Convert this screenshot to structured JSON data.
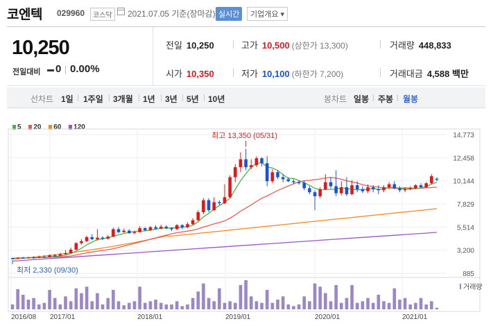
{
  "header": {
    "name": "코엔텍",
    "code": "029960",
    "market": "코스닥",
    "as_of": "2021.07.05 기준(장마감)",
    "realtime_label": "실시간",
    "info_label": "기업개요 ▾"
  },
  "quote": {
    "price": "10,250",
    "change_label": "전일대비",
    "change_value": "0",
    "change_pct": "0.00%",
    "prev_close_label": "전일",
    "prev_close": "10,250",
    "high_label": "고가",
    "high": "10,500",
    "upper_limit": "(상한가 13,300)",
    "volume_label": "거래량",
    "volume": "448,833",
    "open_label": "시가",
    "open": "10,350",
    "low_label": "저가",
    "low": "10,100",
    "lower_limit": "(하한가 7,200)",
    "amount_label": "거래대금",
    "amount": "4,588 백만"
  },
  "period_bar": {
    "section_label": "선차트",
    "periods": [
      "1일",
      "1주일",
      "3개월",
      "1년",
      "3년",
      "5년",
      "10년"
    ],
    "candle_label": "봉차트",
    "candles": [
      "일봉",
      "주봉",
      "월봉"
    ],
    "selected_candle": "월봉"
  },
  "colors": {
    "up": "#e0181c",
    "down": "#1653d8",
    "ma5": "#4fb33b",
    "ma20": "#e85a5a",
    "ma60": "#f08a24",
    "ma120": "#9a55c9",
    "volume": "#9b86c6"
  },
  "chart_data": {
    "type": "candlestick",
    "legend": [
      {
        "name": "5",
        "color": "#4fb33b"
      },
      {
        "name": "20",
        "color": "#e85a5a"
      },
      {
        "name": "60",
        "color": "#f08a24"
      },
      {
        "name": "120",
        "color": "#9a55c9"
      }
    ],
    "y_ticks": [
      "14,773",
      "12,458",
      "10,144",
      "7,829",
      "5,514",
      "3,200",
      "885"
    ],
    "ylim": [
      885,
      14773
    ],
    "x_ticks": [
      "2016/08",
      "2017/01",
      "2018/01",
      "2019/01",
      "2020/01",
      "2021/01"
    ],
    "volume_label": "거래량",
    "high_annotation": "최고 13,350 (05/31)",
    "low_annotation": "최저 2,330 (09/30)",
    "candles": [
      [
        2410,
        2380,
        2330,
        2450
      ],
      [
        2380,
        2450,
        2330,
        2500
      ],
      [
        2450,
        2420,
        2400,
        2520
      ],
      [
        2420,
        2480,
        2380,
        2550
      ],
      [
        2480,
        2450,
        2420,
        2600
      ],
      [
        2450,
        2530,
        2400,
        2650
      ],
      [
        2530,
        2500,
        2460,
        2700
      ],
      [
        2500,
        2680,
        2480,
        2780
      ],
      [
        2680,
        2650,
        2550,
        2820
      ],
      [
        2650,
        2790,
        2600,
        2950
      ],
      [
        2790,
        2900,
        2750,
        3200
      ],
      [
        2900,
        3250,
        2850,
        3450
      ],
      [
        3250,
        3900,
        3200,
        4000
      ],
      [
        3900,
        4100,
        3750,
        4300
      ],
      [
        4100,
        4500,
        4000,
        4650
      ],
      [
        4500,
        4300,
        4200,
        4800
      ],
      [
        4300,
        4450,
        4150,
        5300
      ],
      [
        4450,
        4350,
        4200,
        4600
      ],
      [
        4350,
        4550,
        4250,
        4700
      ],
      [
        4550,
        5300,
        4500,
        5450
      ],
      [
        5300,
        5000,
        4900,
        5500
      ],
      [
        5000,
        5150,
        4950,
        5350
      ],
      [
        5150,
        4900,
        4850,
        5300
      ],
      [
        4900,
        5000,
        4800,
        5150
      ],
      [
        5000,
        5400,
        4950,
        5600
      ],
      [
        5400,
        5200,
        5100,
        5500
      ],
      [
        5200,
        5500,
        5100,
        5600
      ],
      [
        5500,
        5350,
        5250,
        5700
      ],
      [
        5350,
        5550,
        5300,
        5750
      ],
      [
        5550,
        5400,
        5300,
        5700
      ],
      [
        5400,
        5300,
        5100,
        5500
      ],
      [
        5300,
        5700,
        5200,
        5800
      ],
      [
        5700,
        5500,
        5300,
        5800
      ],
      [
        5500,
        5800,
        5400,
        6000
      ],
      [
        5800,
        6200,
        5700,
        6400
      ],
      [
        6200,
        7000,
        6100,
        7200
      ],
      [
        7000,
        8200,
        6800,
        8400
      ],
      [
        8200,
        7200,
        7000,
        8400
      ],
      [
        7200,
        8000,
        7100,
        8500
      ],
      [
        8000,
        7900,
        7700,
        8200
      ],
      [
        7900,
        8500,
        7800,
        9800
      ],
      [
        8500,
        10500,
        8400,
        10700
      ],
      [
        10500,
        11500,
        10000,
        11800
      ],
      [
        11500,
        12300,
        11000,
        13000
      ],
      [
        12300,
        11500,
        11200,
        13350
      ],
      [
        11500,
        11700,
        11300,
        12300
      ],
      [
        11700,
        12400,
        11500,
        12600
      ],
      [
        12400,
        11900,
        11600,
        12500
      ],
      [
        11900,
        10100,
        9600,
        12600
      ],
      [
        10100,
        11000,
        9900,
        11300
      ],
      [
        11000,
        10500,
        10300,
        11200
      ],
      [
        10500,
        10300,
        10000,
        10800
      ],
      [
        10300,
        10100,
        10000,
        10500
      ],
      [
        10100,
        10000,
        9800,
        10300
      ],
      [
        10000,
        9950,
        9750,
        10200
      ],
      [
        9950,
        9400,
        9200,
        10200
      ],
      [
        9400,
        9000,
        8800,
        9600
      ],
      [
        9000,
        8600,
        7200,
        9200
      ],
      [
        8600,
        9300,
        8400,
        9500
      ],
      [
        9300,
        10000,
        9200,
        10800
      ],
      [
        10000,
        9600,
        9400,
        10500
      ],
      [
        9600,
        8900,
        8600,
        11200
      ],
      [
        8900,
        9500,
        8700,
        10100
      ],
      [
        9500,
        8800,
        8600,
        10500
      ],
      [
        8800,
        9700,
        8700,
        10200
      ],
      [
        9700,
        9300,
        9000,
        10100
      ],
      [
        9300,
        9100,
        8900,
        9600
      ],
      [
        9100,
        9500,
        8900,
        9800
      ],
      [
        9500,
        9300,
        9000,
        9700
      ],
      [
        9300,
        9200,
        8800,
        9700
      ],
      [
        9200,
        9500,
        9000,
        9700
      ],
      [
        9500,
        9800,
        9300,
        10000
      ],
      [
        9800,
        9400,
        9300,
        10100
      ],
      [
        9400,
        9200,
        9000,
        9600
      ],
      [
        9200,
        9300,
        9000,
        9500
      ],
      [
        9300,
        9400,
        9200,
        9600
      ],
      [
        9400,
        9700,
        9300,
        9800
      ],
      [
        9700,
        9500,
        9400,
        9900
      ],
      [
        9500,
        9900,
        9400,
        10000
      ],
      [
        9900,
        10600,
        9800,
        10800
      ],
      [
        10350,
        10250,
        10100,
        10500
      ]
    ],
    "volume": [
      6,
      25,
      18,
      12,
      14,
      6,
      8,
      24,
      14,
      6,
      16,
      10,
      26,
      20,
      28,
      10,
      20,
      6,
      14,
      24,
      10,
      5,
      8,
      10,
      28,
      8,
      10,
      12,
      8,
      6,
      6,
      10,
      4,
      6,
      14,
      22,
      32,
      14,
      10,
      26,
      8,
      10,
      8,
      30,
      36,
      16,
      10,
      8,
      24,
      8,
      12,
      16,
      6,
      4,
      6,
      16,
      10,
      32,
      28,
      20,
      10,
      30,
      8,
      14,
      30,
      8,
      10,
      14,
      8,
      18,
      10,
      8,
      26,
      12,
      14,
      6,
      8,
      14,
      6,
      10,
      2
    ]
  }
}
